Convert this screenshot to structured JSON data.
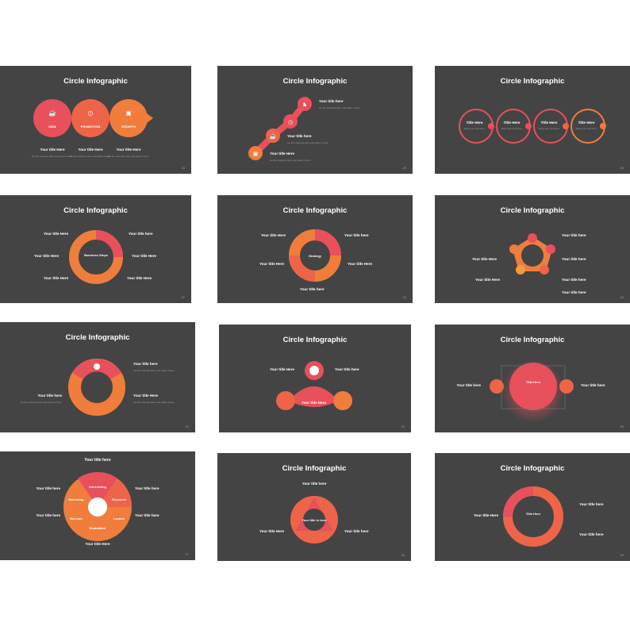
{
  "colors": {
    "background": "#ffffff",
    "slide": "#444444",
    "red": "#e8505b",
    "orange": "#f07d3c",
    "amber": "#f39b34",
    "coral": "#ee6449"
  },
  "slides": [
    {
      "title": "Circle Infographic",
      "page": "28",
      "labels": [
        "IDEA",
        "PROMOTION",
        "GROWTH"
      ],
      "items": [
        "Your title Here",
        "Your title Here",
        "Your title Here"
      ],
      "body": "Go the selected Here and place it here."
    },
    {
      "title": "Circle Infographic",
      "page": "29",
      "items": [
        "Your title here",
        "Your title here",
        "Your title Here"
      ],
      "body": "Go the selected Here and place it here."
    },
    {
      "title": "Circle Infographic",
      "page": "30",
      "items": [
        "Title Here",
        "Title Here",
        "Title Here",
        "Title Here"
      ],
      "body": "Write your text here."
    },
    {
      "title": "Circle Infographic",
      "page": "31",
      "center": "Business Steps",
      "items": [
        "Your title Here",
        "Your title Here",
        "Your title Here",
        "Your title here",
        "Your title Here",
        "Your title Here"
      ],
      "body": "Go the selected Here and place it here."
    },
    {
      "title": "Circle Infographic",
      "page": "32",
      "center": "Strategy",
      "items": [
        "Your title Here",
        "Your title Here",
        "Your title here",
        "Your title Here",
        "Your title here"
      ],
      "body": "Go the selected Here and place it here."
    },
    {
      "title": "Circle Infographic",
      "page": "33",
      "items": [
        "Your title here",
        "Your title here",
        "Your title Here",
        "Your title Here",
        "Your title here",
        "Your title here"
      ],
      "body": "Go the selected Here and place it here."
    },
    {
      "title": "Circle Infographic",
      "page": "34",
      "items": [
        "Your title here",
        "Your title Here",
        "Your title here"
      ],
      "body": "Go the selected Here and place it here."
    },
    {
      "title": "Circle Infographic",
      "page": "35",
      "items": [
        "Your title Here",
        "Your title here",
        "Your title Here"
      ],
      "body": "Go the selected Here and place it here."
    },
    {
      "title": "Circle Infographic",
      "page": "36",
      "center": "Title Here",
      "items": [
        "Your title here",
        "Your title here"
      ],
      "body": "Go the selected Here and place it here."
    },
    {
      "title": "Your title here",
      "page": "37",
      "labels": [
        "Advertising",
        "Research",
        "Launch",
        "Evaluation",
        "Execute",
        "Marketing"
      ],
      "items": [
        "Your title here",
        "Your title here",
        "Your title here",
        "Your title here",
        "Your title Here",
        "Your title here"
      ],
      "body": "Go the selected Here and place it here."
    },
    {
      "title": "Circle Infographic",
      "page": "38",
      "center": "Your title is here",
      "items": [
        "Your title here",
        "Your title Here",
        "Your title here"
      ],
      "body": "Go the selected Here and place it here."
    },
    {
      "title": "Circle Infographic",
      "page": "39",
      "center": "Title Here",
      "items": [
        "Your title Here",
        "Your title here",
        "Your title here"
      ],
      "body": "Go the selected Here and place it here."
    }
  ]
}
